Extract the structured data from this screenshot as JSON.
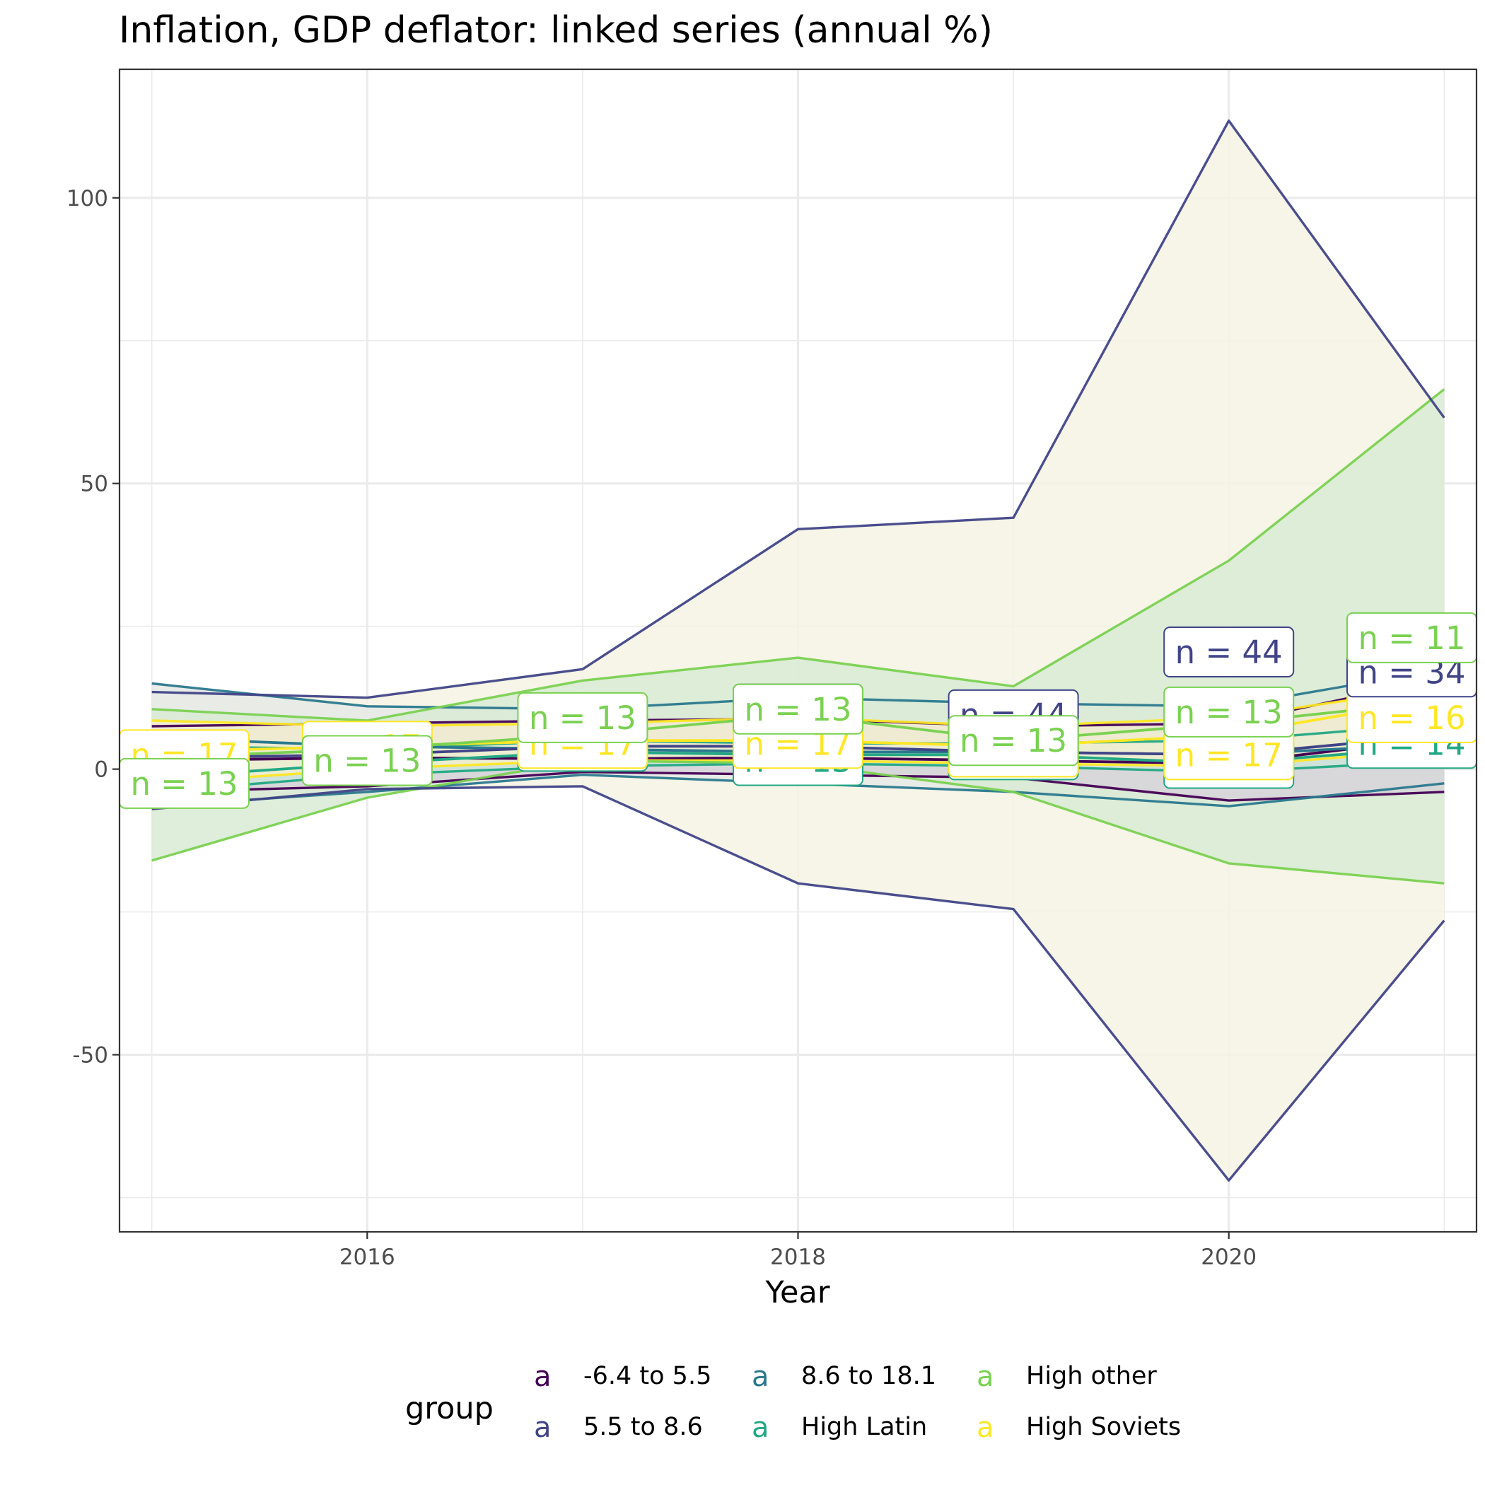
{
  "chart_data": {
    "type": "line",
    "title": "Inflation, GDP deflator: linked series (annual %)",
    "xlabel": "Year",
    "ylabel": "",
    "xlim": [
      2014.85,
      2021.15
    ],
    "ylim": [
      -81,
      122.5
    ],
    "x_ticks": [
      2016,
      2018,
      2020
    ],
    "y_ticks": [
      -50,
      0,
      50,
      100
    ],
    "y_tick_labels": [
      "-50",
      "0",
      "50",
      "100"
    ],
    "grid": true,
    "theme": "bw",
    "legend": {
      "title": "group",
      "position": "bottom",
      "key_glyph": "a",
      "items": [
        {
          "label": "-6.4 to 5.5",
          "color": "#440154"
        },
        {
          "label": "5.5 to 8.6",
          "color": "#414487"
        },
        {
          "label": "8.6 to 18.1",
          "color": "#2A788E"
        },
        {
          "label": "High Latin",
          "color": "#22A884"
        },
        {
          "label": "High other",
          "color": "#7AD151"
        },
        {
          "label": "High Soviets",
          "color": "#FDE725"
        }
      ]
    },
    "x": [
      2015,
      2016,
      2017,
      2018,
      2019,
      2020,
      2021
    ],
    "series": [
      {
        "name": "-6.4 to 5.5",
        "color": "#440154",
        "median": [
          1.5,
          2.0,
          1.8,
          2.0,
          1.5,
          1.0,
          5.5
        ],
        "upper": [
          7.5,
          8.0,
          8.5,
          8.8,
          7.5,
          8.0,
          16.0
        ],
        "lower": [
          -4.0,
          -3.0,
          -0.5,
          -1.0,
          -1.5,
          -5.5,
          -4.0
        ],
        "ribbon_fill": "#d7d3d9"
      },
      {
        "name": "5.5 to 8.6",
        "color": "#414487",
        "median": [
          2.0,
          2.5,
          4.0,
          4.0,
          3.0,
          2.5,
          6.0
        ],
        "upper": [
          13.5,
          12.5,
          17.5,
          42.0,
          44.0,
          113.5,
          61.5
        ],
        "lower": [
          -7.0,
          -3.5,
          -3.0,
          -20.0,
          -24.5,
          -72.0,
          -26.5
        ],
        "ribbon_fill": "#f5f3e3"
      },
      {
        "name": "8.6 to 18.1",
        "color": "#2A788E",
        "median": [
          5.5,
          4.0,
          3.5,
          3.0,
          3.0,
          2.5,
          4.5
        ],
        "upper": [
          15.0,
          11.0,
          10.5,
          12.5,
          11.5,
          11.0,
          17.5
        ],
        "lower": [
          -6.5,
          -4.0,
          -1.0,
          -2.5,
          -4.0,
          -6.5,
          -2.5
        ],
        "ribbon_fill": "#e6e9e6"
      },
      {
        "name": "High Latin",
        "color": "#22A884",
        "median": [
          -1.5,
          1.0,
          3.0,
          2.5,
          2.5,
          1.0,
          4.0
        ],
        "upper": [
          4.0,
          3.5,
          5.0,
          4.5,
          4.5,
          5.0,
          8.0
        ],
        "lower": [
          -4.0,
          -1.0,
          0.5,
          1.0,
          0.5,
          -0.5,
          1.5
        ],
        "ribbon_fill": "#cfe5da"
      },
      {
        "name": "High other",
        "color": "#7AD151",
        "median": [
          2.0,
          3.5,
          6.0,
          9.5,
          5.0,
          8.0,
          12.0
        ],
        "upper": [
          10.5,
          8.5,
          15.5,
          19.5,
          14.5,
          36.5,
          66.5
        ],
        "lower": [
          -16.0,
          -5.0,
          1.5,
          1.0,
          -4.0,
          -16.5,
          -20.0
        ],
        "ribbon_fill": "#d8ebd4"
      },
      {
        "name": "High Soviets",
        "color": "#FDE725",
        "median": [
          3.0,
          4.0,
          5.0,
          5.0,
          4.0,
          6.0,
          12.5
        ],
        "upper": [
          8.5,
          7.5,
          8.0,
          9.0,
          7.5,
          9.0,
          14.5
        ],
        "lower": [
          -2.5,
          0.0,
          1.5,
          1.5,
          1.0,
          0.5,
          3.5
        ],
        "ribbon_fill": "#f2efd0"
      }
    ],
    "count_labels": [
      {
        "text": "n = 17",
        "x": 2015,
        "y": 2.5,
        "group": "High Soviets"
      },
      {
        "text": "n = 13",
        "x": 2015,
        "y": -2.5,
        "group": "High other"
      },
      {
        "text": "n = 17",
        "x": 2016,
        "y": 4.0,
        "group": "High Soviets"
      },
      {
        "text": "n = 13",
        "x": 2016,
        "y": 1.5,
        "group": "High other"
      },
      {
        "text": "n = 13",
        "x": 2017,
        "y": 4.0,
        "group": "High Latin"
      },
      {
        "text": "n = 17",
        "x": 2017,
        "y": 4.5,
        "group": "High Soviets"
      },
      {
        "text": "n = 13",
        "x": 2017,
        "y": 9.0,
        "group": "High other"
      },
      {
        "text": "n = 44",
        "x": 2018,
        "y": 10.5,
        "group": "5.5 to 8.6"
      },
      {
        "text": "n = 13",
        "x": 2018,
        "y": 1.5,
        "group": "High Latin"
      },
      {
        "text": "n = 17",
        "x": 2018,
        "y": 4.5,
        "group": "High Soviets"
      },
      {
        "text": "n = 13",
        "x": 2018,
        "y": 10.5,
        "group": "High other"
      },
      {
        "text": "n = 44",
        "x": 2019,
        "y": 9.5,
        "group": "5.5 to 8.6"
      },
      {
        "text": "n = 13",
        "x": 2019,
        "y": 2.5,
        "group": "High Latin"
      },
      {
        "text": "n = 17",
        "x": 2019,
        "y": 3.0,
        "group": "High Soviets"
      },
      {
        "text": "n = 13",
        "x": 2019,
        "y": 5.0,
        "group": "High other"
      },
      {
        "text": "n = 44",
        "x": 2020,
        "y": 20.5,
        "group": "5.5 to 8.6"
      },
      {
        "text": "n = 13",
        "x": 2020,
        "y": 1.0,
        "group": "High Latin"
      },
      {
        "text": "n = 17",
        "x": 2020,
        "y": 2.5,
        "group": "High Soviets"
      },
      {
        "text": "n = 13",
        "x": 2020,
        "y": 10.0,
        "group": "High other"
      },
      {
        "text": "n = 14",
        "x": 2021,
        "y": 4.5,
        "group": "High Latin"
      },
      {
        "text": "n = 16",
        "x": 2021,
        "y": 9.0,
        "group": "High Soviets"
      },
      {
        "text": "n = 34",
        "x": 2021,
        "y": 17.0,
        "group": "5.5 to 8.6"
      },
      {
        "text": "n = 11",
        "x": 2021,
        "y": 23.0,
        "group": "High other"
      }
    ]
  }
}
